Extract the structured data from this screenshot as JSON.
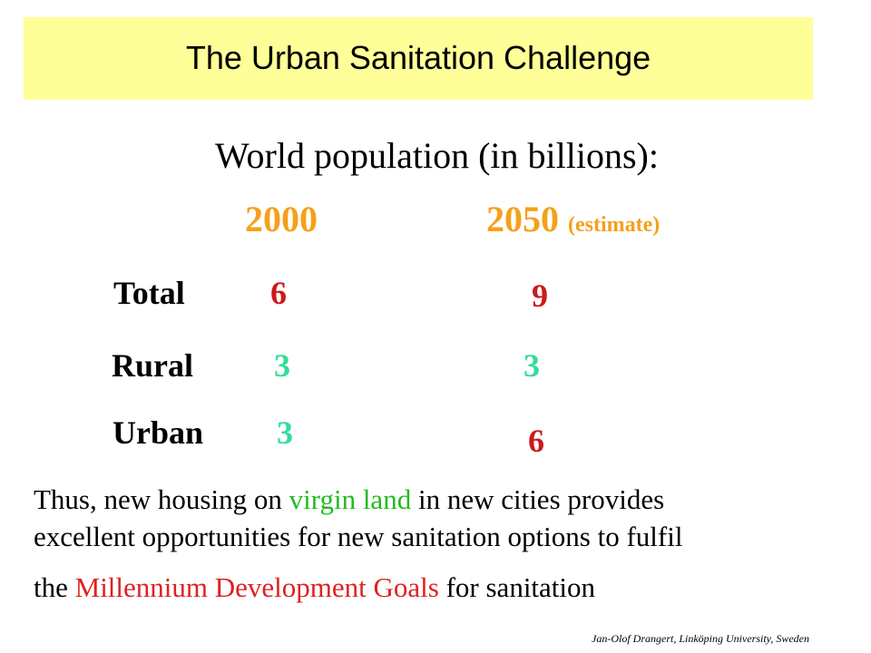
{
  "title": "The Urban Sanitation Challenge",
  "subtitle": "World population (in billions):",
  "columns": {
    "year_2000": "2000",
    "year_2050": "2050",
    "year_2050_note": "(estimate)"
  },
  "rows": [
    {
      "label": "Total",
      "v2000": "6",
      "v2050": "9"
    },
    {
      "label": "Rural",
      "v2000": "3",
      "v2050": "3"
    },
    {
      "label": "Urban",
      "v2000": "3",
      "v2050": "6"
    }
  ],
  "body": {
    "line1_a": "Thus, new housing on ",
    "line1_highlight": "virgin land",
    "line1_b": " in new cities provides",
    "line2": "excellent opportunities for new sanitation options to fulfil",
    "line3_a": "the ",
    "line3_highlight": "Millennium Development Goals",
    "line3_b": " for sanitation"
  },
  "credit": "Jan-Olof Drangert, Linköping University, Sweden",
  "colors": {
    "banner": "#ffff99",
    "year": "#f5a01a",
    "red_value": "#cc1a1a",
    "green_value": "#33dd99",
    "green_highlight": "#22bb22",
    "red_highlight": "#dd2222"
  }
}
